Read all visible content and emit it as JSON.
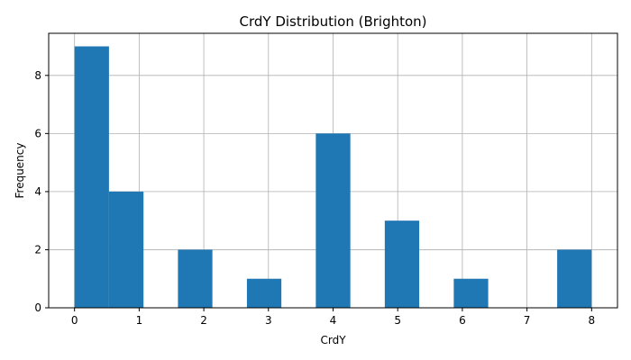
{
  "chart_data": {
    "type": "bar",
    "title": "CrdY Distribution (Brighton)",
    "xlabel": "CrdY",
    "ylabel": "Frequency",
    "xlim": [
      -0.4,
      8.4
    ],
    "ylim": [
      0,
      9.45
    ],
    "xticks": [
      0,
      1,
      2,
      3,
      4,
      5,
      6,
      7,
      8
    ],
    "yticks": [
      0,
      2,
      4,
      6,
      8
    ],
    "grid": true,
    "bar_color": "#1f77b4",
    "bins": [
      {
        "x0": 0.0,
        "x1": 0.533,
        "count": 9
      },
      {
        "x0": 0.533,
        "x1": 1.067,
        "count": 4
      },
      {
        "x0": 1.067,
        "x1": 1.6,
        "count": 0
      },
      {
        "x0": 1.6,
        "x1": 2.133,
        "count": 2
      },
      {
        "x0": 2.133,
        "x1": 2.667,
        "count": 0
      },
      {
        "x0": 2.667,
        "x1": 3.2,
        "count": 1
      },
      {
        "x0": 3.2,
        "x1": 3.733,
        "count": 0
      },
      {
        "x0": 3.733,
        "x1": 4.267,
        "count": 6
      },
      {
        "x0": 4.267,
        "x1": 4.8,
        "count": 0
      },
      {
        "x0": 4.8,
        "x1": 5.333,
        "count": 3
      },
      {
        "x0": 5.333,
        "x1": 5.867,
        "count": 0
      },
      {
        "x0": 5.867,
        "x1": 6.4,
        "count": 1
      },
      {
        "x0": 6.4,
        "x1": 6.933,
        "count": 0
      },
      {
        "x0": 6.933,
        "x1": 7.467,
        "count": 0
      },
      {
        "x0": 7.467,
        "x1": 8.0,
        "count": 2
      }
    ]
  }
}
